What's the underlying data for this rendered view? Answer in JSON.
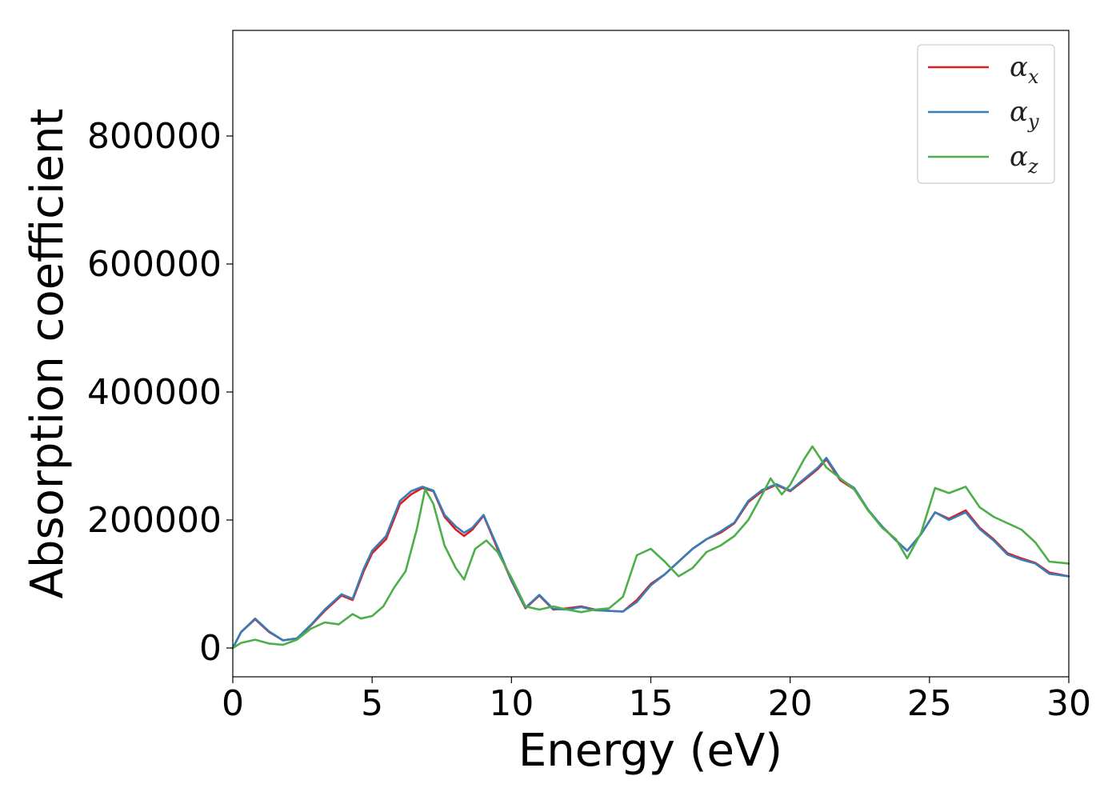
{
  "chart_data": {
    "type": "line",
    "title": "",
    "xlabel": "Energy (eV)",
    "ylabel": "Absorption coefficient",
    "xlim": [
      0,
      30
    ],
    "ylim": [
      -45000,
      965000
    ],
    "xticks": [
      0,
      5,
      10,
      15,
      20,
      25,
      30
    ],
    "yticks": [
      0,
      200000,
      400000,
      600000,
      800000
    ],
    "grid": false,
    "legend": "top-right",
    "series": [
      {
        "name": "α_x",
        "symbol": "α",
        "sub": "x",
        "color": "#e41a1c",
        "points": [
          [
            0,
            0
          ],
          [
            0.3,
            25000
          ],
          [
            0.8,
            45000
          ],
          [
            1.3,
            25000
          ],
          [
            1.8,
            12000
          ],
          [
            2.3,
            15000
          ],
          [
            2.8,
            35000
          ],
          [
            3.3,
            58000
          ],
          [
            3.9,
            82000
          ],
          [
            4.3,
            75000
          ],
          [
            4.7,
            120000
          ],
          [
            5.0,
            148000
          ],
          [
            5.5,
            170000
          ],
          [
            6.0,
            225000
          ],
          [
            6.4,
            240000
          ],
          [
            6.8,
            250000
          ],
          [
            7.2,
            245000
          ],
          [
            7.6,
            205000
          ],
          [
            8.0,
            185000
          ],
          [
            8.3,
            175000
          ],
          [
            8.6,
            185000
          ],
          [
            9.0,
            207000
          ],
          [
            9.5,
            155000
          ],
          [
            10.0,
            105000
          ],
          [
            10.5,
            62000
          ],
          [
            11.0,
            82000
          ],
          [
            11.5,
            60000
          ],
          [
            12.0,
            62000
          ],
          [
            12.5,
            65000
          ],
          [
            13.0,
            60000
          ],
          [
            13.5,
            58000
          ],
          [
            14.0,
            57000
          ],
          [
            14.5,
            75000
          ],
          [
            15.0,
            100000
          ],
          [
            15.5,
            115000
          ],
          [
            16.0,
            135000
          ],
          [
            16.5,
            155000
          ],
          [
            17.0,
            170000
          ],
          [
            17.5,
            180000
          ],
          [
            18.0,
            195000
          ],
          [
            18.5,
            228000
          ],
          [
            19.0,
            245000
          ],
          [
            19.5,
            255000
          ],
          [
            20.0,
            245000
          ],
          [
            20.5,
            262000
          ],
          [
            21.0,
            280000
          ],
          [
            21.3,
            295000
          ],
          [
            21.8,
            262000
          ],
          [
            22.3,
            248000
          ],
          [
            22.8,
            215000
          ],
          [
            23.3,
            190000
          ],
          [
            23.8,
            168000
          ],
          [
            24.2,
            152000
          ],
          [
            24.7,
            178000
          ],
          [
            25.2,
            212000
          ],
          [
            25.7,
            202000
          ],
          [
            26.3,
            215000
          ],
          [
            26.8,
            188000
          ],
          [
            27.3,
            170000
          ],
          [
            27.8,
            148000
          ],
          [
            28.3,
            140000
          ],
          [
            28.8,
            133000
          ],
          [
            29.3,
            118000
          ],
          [
            30,
            112000
          ]
        ]
      },
      {
        "name": "α_y",
        "symbol": "α",
        "sub": "y",
        "color": "#377eb8",
        "points": [
          [
            0,
            0
          ],
          [
            0.3,
            25000
          ],
          [
            0.8,
            46000
          ],
          [
            1.3,
            26000
          ],
          [
            1.8,
            12000
          ],
          [
            2.3,
            15000
          ],
          [
            2.8,
            36000
          ],
          [
            3.3,
            60000
          ],
          [
            3.9,
            84000
          ],
          [
            4.3,
            77000
          ],
          [
            4.7,
            124000
          ],
          [
            5.0,
            152000
          ],
          [
            5.5,
            175000
          ],
          [
            6.0,
            230000
          ],
          [
            6.4,
            245000
          ],
          [
            6.8,
            252000
          ],
          [
            7.2,
            246000
          ],
          [
            7.6,
            208000
          ],
          [
            8.0,
            190000
          ],
          [
            8.3,
            180000
          ],
          [
            8.6,
            188000
          ],
          [
            9.0,
            208000
          ],
          [
            9.5,
            158000
          ],
          [
            10.0,
            106000
          ],
          [
            10.5,
            63000
          ],
          [
            11.0,
            83000
          ],
          [
            11.5,
            61000
          ],
          [
            12.0,
            60000
          ],
          [
            12.5,
            64000
          ],
          [
            13.0,
            59000
          ],
          [
            13.5,
            58000
          ],
          [
            14.0,
            57000
          ],
          [
            14.5,
            72000
          ],
          [
            15.0,
            98000
          ],
          [
            15.5,
            115000
          ],
          [
            16.0,
            135000
          ],
          [
            16.5,
            155000
          ],
          [
            17.0,
            170000
          ],
          [
            17.5,
            182000
          ],
          [
            18.0,
            196000
          ],
          [
            18.5,
            230000
          ],
          [
            19.0,
            247000
          ],
          [
            19.5,
            256000
          ],
          [
            20.0,
            246000
          ],
          [
            20.5,
            264000
          ],
          [
            21.0,
            282000
          ],
          [
            21.3,
            297000
          ],
          [
            21.8,
            264000
          ],
          [
            22.3,
            250000
          ],
          [
            22.8,
            216000
          ],
          [
            23.3,
            190000
          ],
          [
            23.8,
            168000
          ],
          [
            24.2,
            152000
          ],
          [
            24.7,
            178000
          ],
          [
            25.2,
            212000
          ],
          [
            25.7,
            200000
          ],
          [
            26.3,
            212000
          ],
          [
            26.8,
            186000
          ],
          [
            27.3,
            168000
          ],
          [
            27.8,
            146000
          ],
          [
            28.3,
            138000
          ],
          [
            28.8,
            132000
          ],
          [
            29.3,
            116000
          ],
          [
            30,
            112000
          ]
        ]
      },
      {
        "name": "α_z",
        "symbol": "α",
        "sub": "z",
        "color": "#4daf4a",
        "points": [
          [
            0,
            0
          ],
          [
            0.3,
            8000
          ],
          [
            0.8,
            13000
          ],
          [
            1.3,
            7000
          ],
          [
            1.8,
            5000
          ],
          [
            2.3,
            13000
          ],
          [
            2.8,
            30000
          ],
          [
            3.3,
            40000
          ],
          [
            3.8,
            37000
          ],
          [
            4.3,
            53000
          ],
          [
            4.6,
            46000
          ],
          [
            5.0,
            50000
          ],
          [
            5.4,
            65000
          ],
          [
            5.8,
            95000
          ],
          [
            6.2,
            120000
          ],
          [
            6.6,
            185000
          ],
          [
            6.9,
            248000
          ],
          [
            7.2,
            225000
          ],
          [
            7.6,
            160000
          ],
          [
            8.0,
            125000
          ],
          [
            8.3,
            107000
          ],
          [
            8.7,
            155000
          ],
          [
            9.1,
            168000
          ],
          [
            9.5,
            150000
          ],
          [
            10.0,
            110000
          ],
          [
            10.5,
            65000
          ],
          [
            11.0,
            60000
          ],
          [
            11.5,
            65000
          ],
          [
            12.0,
            60000
          ],
          [
            12.5,
            56000
          ],
          [
            13.0,
            60000
          ],
          [
            13.5,
            62000
          ],
          [
            14.0,
            80000
          ],
          [
            14.5,
            145000
          ],
          [
            15.0,
            155000
          ],
          [
            15.5,
            135000
          ],
          [
            16.0,
            112000
          ],
          [
            16.5,
            125000
          ],
          [
            17.0,
            150000
          ],
          [
            17.5,
            160000
          ],
          [
            18.0,
            175000
          ],
          [
            18.5,
            200000
          ],
          [
            19.0,
            240000
          ],
          [
            19.3,
            265000
          ],
          [
            19.7,
            240000
          ],
          [
            20.0,
            255000
          ],
          [
            20.5,
            295000
          ],
          [
            20.8,
            315000
          ],
          [
            21.3,
            282000
          ],
          [
            21.8,
            265000
          ],
          [
            22.3,
            248000
          ],
          [
            22.8,
            215000
          ],
          [
            23.3,
            188000
          ],
          [
            23.8,
            170000
          ],
          [
            24.2,
            140000
          ],
          [
            24.7,
            180000
          ],
          [
            25.2,
            250000
          ],
          [
            25.7,
            242000
          ],
          [
            26.3,
            252000
          ],
          [
            26.8,
            220000
          ],
          [
            27.3,
            205000
          ],
          [
            27.8,
            195000
          ],
          [
            28.3,
            185000
          ],
          [
            28.8,
            165000
          ],
          [
            29.3,
            135000
          ],
          [
            30,
            132000
          ]
        ]
      }
    ]
  }
}
